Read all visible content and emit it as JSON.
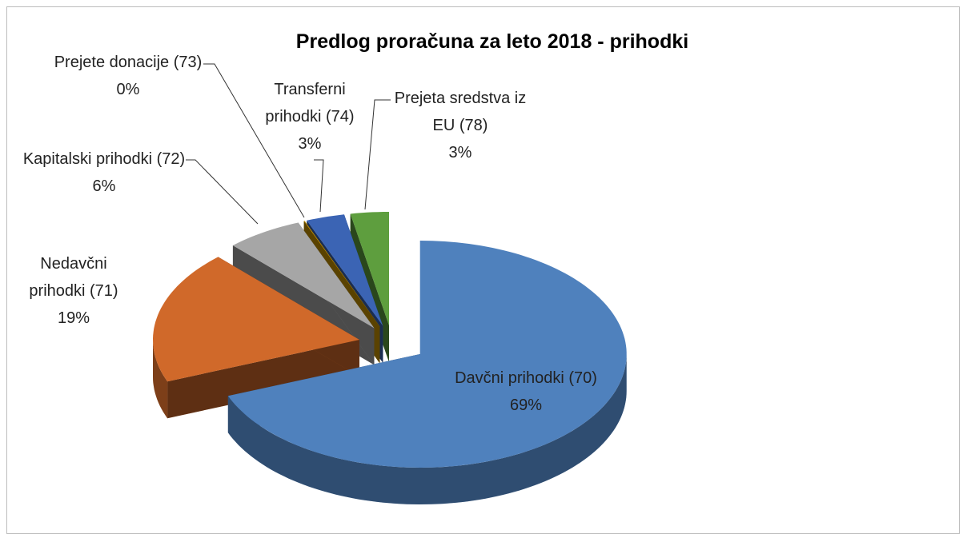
{
  "chart_data": {
    "type": "pie3d",
    "title": "Predlog proračuna za leto 2018 - prihodki",
    "categories": [
      "Davčni prihodki (70)",
      "Nedavčni prihodki (71)",
      "Kapitalski prihodki (72)",
      "Prejete donacije (73)",
      "Transferni prihodki (74)",
      "Prejeta sredstva iz EU (78)"
    ],
    "values": [
      69,
      19,
      6,
      0,
      3,
      3
    ],
    "value_labels": [
      "69%",
      "19%",
      "6%",
      "0%",
      "3%",
      "3%"
    ],
    "colors": [
      "#4f81bd",
      "#d0692a",
      "#a6a6a6",
      "#c79300",
      "#3b64b4",
      "#5e9e3e"
    ]
  }
}
